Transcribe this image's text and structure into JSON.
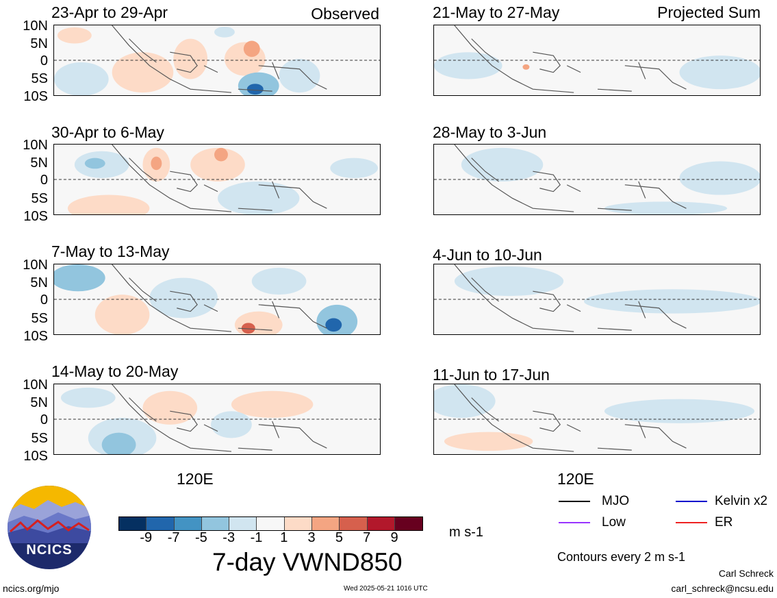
{
  "panels": {
    "left": [
      {
        "title": "23-Apr to 29-Apr",
        "tag": "Observed"
      },
      {
        "title": "30-Apr to 6-May"
      },
      {
        "title": "7-May to 13-May"
      },
      {
        "title": "14-May to 20-May"
      }
    ],
    "right": [
      {
        "title": "21-May to 27-May",
        "tag": "Projected Sum"
      },
      {
        "title": "28-May to 3-Jun"
      },
      {
        "title": "4-Jun to 10-Jun"
      },
      {
        "title": "11-Jun to 17-Jun"
      }
    ]
  },
  "axes": {
    "lat_labels": [
      "10N",
      "5N",
      "0",
      "5S",
      "10S"
    ],
    "lon_label": "120E"
  },
  "colorbar": {
    "colors": [
      "#053061",
      "#2166ac",
      "#4393c3",
      "#92c5de",
      "#d1e5f0",
      "#f7f7f7",
      "#fddbc7",
      "#f4a582",
      "#d6604d",
      "#b2182b",
      "#67001f"
    ],
    "ticks": [
      "-9",
      "-7",
      "-5",
      "-3",
      "-1",
      "1",
      "3",
      "5",
      "7",
      "9"
    ],
    "units": "m s-1"
  },
  "title": "7-day VWND850",
  "legend": {
    "items": [
      {
        "label": "MJO",
        "color": "#000000"
      },
      {
        "label": "Kelvin x2",
        "color": "#0000cc"
      },
      {
        "label": "Low",
        "color": "#9933ff"
      },
      {
        "label": "ER",
        "color": "#ee2222"
      }
    ],
    "contours": "Contours every 2 m s-1"
  },
  "logo": {
    "text": "NCICS"
  },
  "footer": {
    "site": "ncics.org/mjo",
    "timestamp": "Wed 2025-05-21 1016 UTC",
    "author": "Carl Schreck",
    "email": "carl_schreck@ncsu.edu"
  }
}
